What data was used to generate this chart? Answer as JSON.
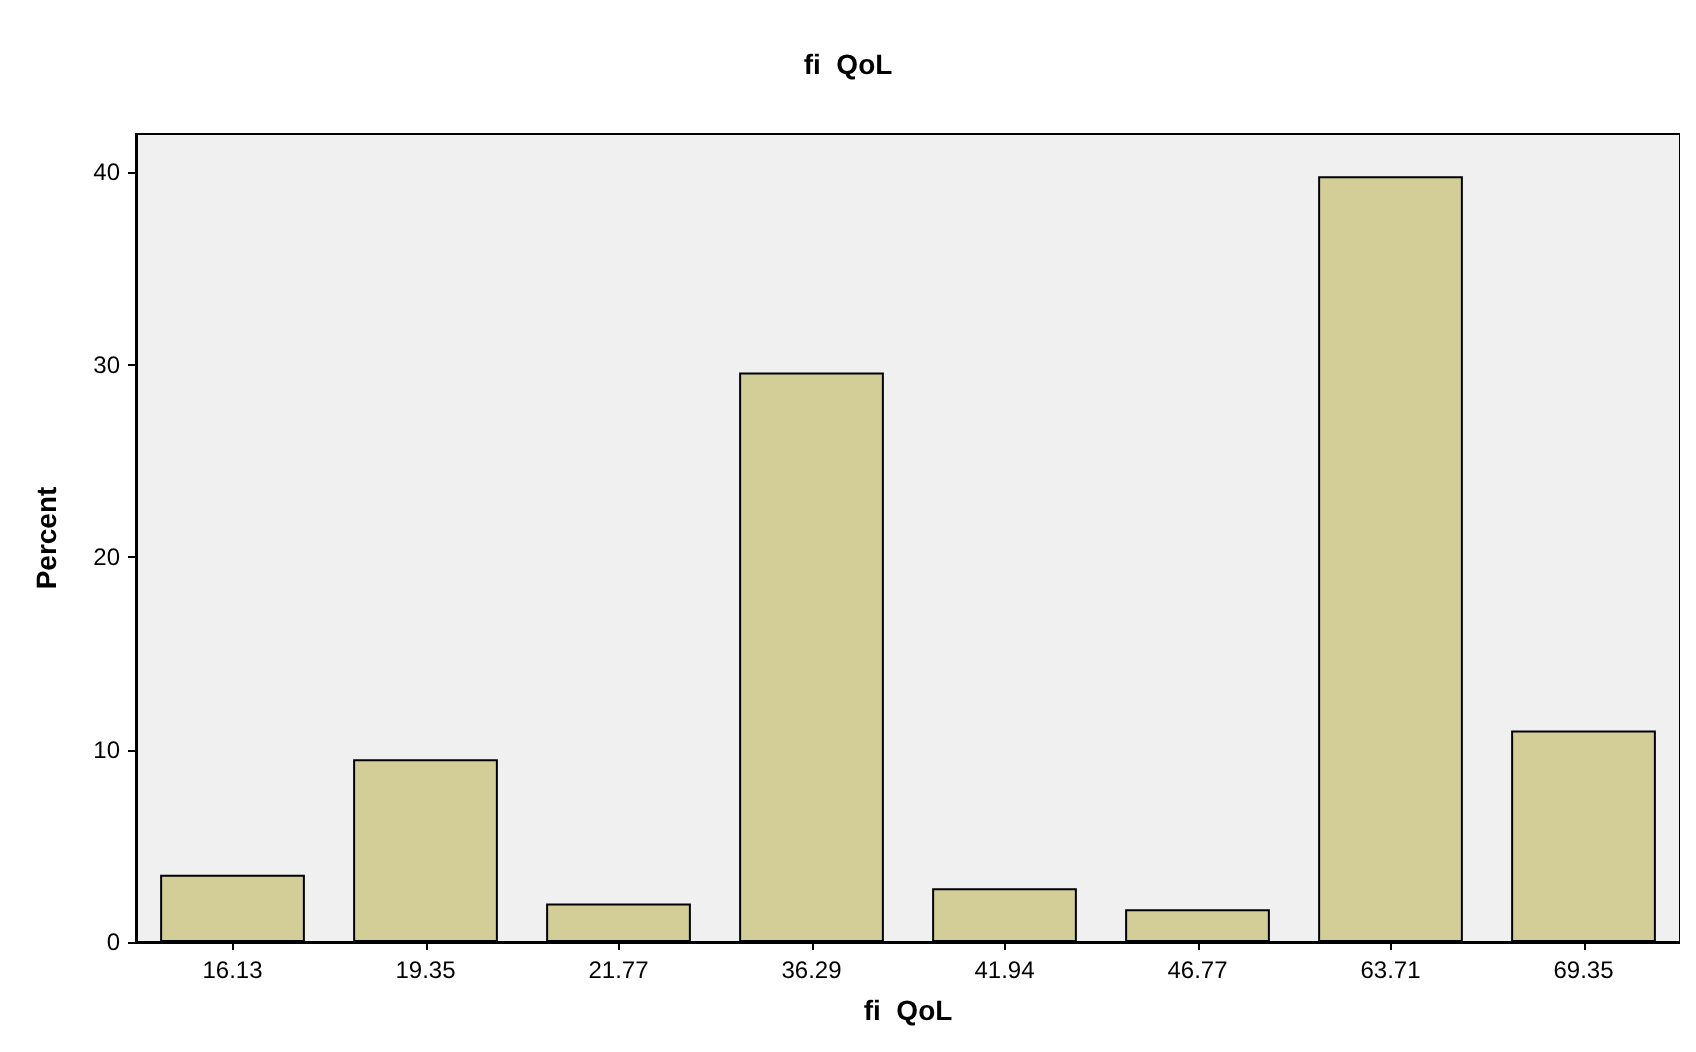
{
  "chart_data": {
    "type": "bar",
    "title": "fi  QoL",
    "xlabel": "fi  QoL",
    "ylabel": "Percent",
    "categories": [
      "16.13",
      "19.35",
      "21.77",
      "36.29",
      "41.94",
      "46.77",
      "63.71",
      "69.35"
    ],
    "values": [
      3.5,
      9.5,
      2.0,
      29.6,
      2.8,
      1.7,
      39.8,
      11.0
    ],
    "color": "#d3ce97",
    "ylim": [
      0,
      42
    ],
    "yticks": [
      0,
      10,
      20,
      30,
      40
    ],
    "grid": false
  }
}
